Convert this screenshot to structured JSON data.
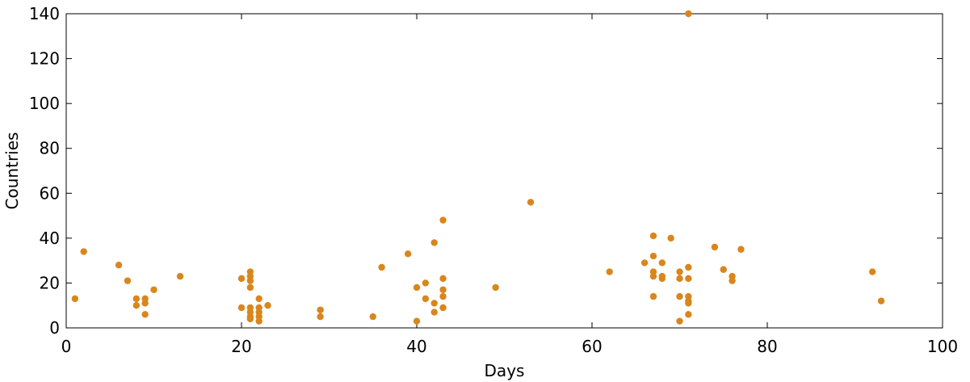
{
  "chart_data": {
    "type": "scatter",
    "title": "",
    "xlabel": "Days",
    "ylabel": "Countries",
    "xlim": [
      0,
      100
    ],
    "ylim": [
      0,
      140
    ],
    "xticks": [
      0,
      20,
      40,
      60,
      80,
      100
    ],
    "yticks": [
      0,
      20,
      40,
      60,
      80,
      100,
      120,
      140
    ],
    "grid": false,
    "marker_color": "#d9861c",
    "points": [
      {
        "x": 1,
        "y": 13
      },
      {
        "x": 2,
        "y": 34
      },
      {
        "x": 6,
        "y": 28
      },
      {
        "x": 7,
        "y": 21
      },
      {
        "x": 8,
        "y": 13
      },
      {
        "x": 8,
        "y": 10
      },
      {
        "x": 9,
        "y": 13
      },
      {
        "x": 9,
        "y": 11
      },
      {
        "x": 9,
        "y": 6
      },
      {
        "x": 10,
        "y": 17
      },
      {
        "x": 13,
        "y": 23
      },
      {
        "x": 20,
        "y": 22
      },
      {
        "x": 20,
        "y": 9
      },
      {
        "x": 21,
        "y": 25
      },
      {
        "x": 21,
        "y": 23
      },
      {
        "x": 21,
        "y": 21
      },
      {
        "x": 21,
        "y": 18
      },
      {
        "x": 21,
        "y": 9
      },
      {
        "x": 21,
        "y": 7
      },
      {
        "x": 21,
        "y": 5
      },
      {
        "x": 21,
        "y": 4
      },
      {
        "x": 22,
        "y": 13
      },
      {
        "x": 22,
        "y": 9
      },
      {
        "x": 22,
        "y": 7
      },
      {
        "x": 22,
        "y": 5
      },
      {
        "x": 22,
        "y": 3
      },
      {
        "x": 23,
        "y": 10
      },
      {
        "x": 29,
        "y": 8
      },
      {
        "x": 29,
        "y": 5
      },
      {
        "x": 35,
        "y": 5
      },
      {
        "x": 36,
        "y": 27
      },
      {
        "x": 39,
        "y": 33
      },
      {
        "x": 40,
        "y": 18
      },
      {
        "x": 40,
        "y": 3
      },
      {
        "x": 41,
        "y": 20
      },
      {
        "x": 41,
        "y": 13
      },
      {
        "x": 42,
        "y": 38
      },
      {
        "x": 42,
        "y": 11
      },
      {
        "x": 42,
        "y": 7
      },
      {
        "x": 43,
        "y": 48
      },
      {
        "x": 43,
        "y": 22
      },
      {
        "x": 43,
        "y": 17
      },
      {
        "x": 43,
        "y": 14
      },
      {
        "x": 43,
        "y": 9
      },
      {
        "x": 49,
        "y": 18
      },
      {
        "x": 53,
        "y": 56
      },
      {
        "x": 62,
        "y": 25
      },
      {
        "x": 66,
        "y": 29
      },
      {
        "x": 67,
        "y": 41
      },
      {
        "x": 67,
        "y": 32
      },
      {
        "x": 67,
        "y": 25
      },
      {
        "x": 67,
        "y": 23
      },
      {
        "x": 67,
        "y": 14
      },
      {
        "x": 68,
        "y": 29
      },
      {
        "x": 68,
        "y": 23
      },
      {
        "x": 68,
        "y": 22
      },
      {
        "x": 69,
        "y": 40
      },
      {
        "x": 70,
        "y": 25
      },
      {
        "x": 70,
        "y": 22
      },
      {
        "x": 70,
        "y": 14
      },
      {
        "x": 70,
        "y": 3
      },
      {
        "x": 71,
        "y": 140
      },
      {
        "x": 71,
        "y": 27
      },
      {
        "x": 71,
        "y": 22
      },
      {
        "x": 71,
        "y": 14
      },
      {
        "x": 71,
        "y": 12
      },
      {
        "x": 71,
        "y": 11
      },
      {
        "x": 71,
        "y": 6
      },
      {
        "x": 74,
        "y": 36
      },
      {
        "x": 75,
        "y": 26
      },
      {
        "x": 76,
        "y": 23
      },
      {
        "x": 76,
        "y": 21
      },
      {
        "x": 77,
        "y": 35
      },
      {
        "x": 92,
        "y": 25
      },
      {
        "x": 93,
        "y": 12
      }
    ]
  }
}
